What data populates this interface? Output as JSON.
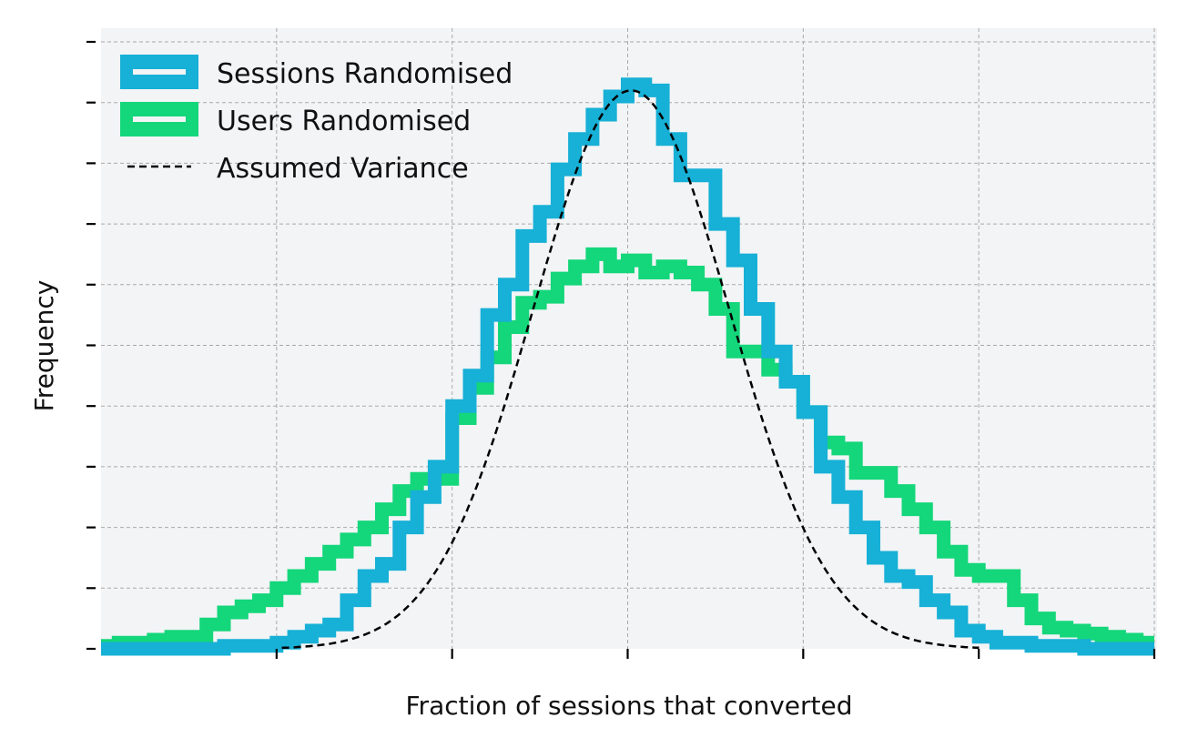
{
  "chart_data": {
    "type": "line",
    "title": "",
    "xlabel": "Fraction of sessions that converted",
    "ylabel": "Frequency",
    "xlim": [
      0,
      60
    ],
    "ylim": [
      0,
      10
    ],
    "grid": true,
    "legend_position": "top-left",
    "x_ticks": [
      10,
      20,
      30,
      40,
      50,
      60
    ],
    "y_ticks": [
      0,
      1,
      2,
      3,
      4,
      5,
      6,
      7,
      8,
      9,
      10
    ],
    "bin_edges": [
      0,
      1,
      2,
      3,
      4,
      5,
      6,
      7,
      8,
      9,
      10,
      11,
      12,
      13,
      14,
      15,
      16,
      17,
      18,
      19,
      20,
      21,
      22,
      23,
      24,
      25,
      26,
      27,
      28,
      29,
      30,
      31,
      32,
      33,
      34,
      35,
      36,
      37,
      38,
      39,
      40,
      41,
      42,
      43,
      44,
      45,
      46,
      47,
      48,
      49,
      50,
      51,
      52,
      53,
      54,
      55,
      56,
      57,
      58,
      59,
      60
    ],
    "series": [
      {
        "name": "Sessions Randomised",
        "color": "#17b0d6",
        "style": "step",
        "values": [
          0,
          0,
          0,
          0,
          0,
          0,
          0,
          0.05,
          0.05,
          0.05,
          0.1,
          0.2,
          0.3,
          0.4,
          0.8,
          1.2,
          1.4,
          2.0,
          2.5,
          3.0,
          4.0,
          4.5,
          5.5,
          6.0,
          6.8,
          7.2,
          7.9,
          8.4,
          8.8,
          9.1,
          9.3,
          9.2,
          8.4,
          7.8,
          7.8,
          7.0,
          6.4,
          5.6,
          4.9,
          4.4,
          3.9,
          3.0,
          2.5,
          2.0,
          1.5,
          1.2,
          1.1,
          0.8,
          0.6,
          0.3,
          0.2,
          0.1,
          0.1,
          0.05,
          0.05,
          0.05,
          0,
          0,
          0,
          0
        ]
      },
      {
        "name": "Users Randomised",
        "color": "#14d67a",
        "style": "step",
        "values": [
          0.05,
          0.1,
          0.1,
          0.15,
          0.2,
          0.2,
          0.4,
          0.6,
          0.7,
          0.8,
          1.0,
          1.2,
          1.4,
          1.6,
          1.8,
          2.0,
          2.3,
          2.6,
          2.8,
          2.8,
          3.8,
          4.3,
          4.8,
          5.3,
          5.7,
          5.8,
          6.1,
          6.3,
          6.5,
          6.3,
          6.4,
          6.2,
          6.3,
          6.2,
          6.0,
          5.6,
          4.9,
          4.9,
          4.6,
          4.4,
          3.9,
          3.4,
          3.3,
          2.9,
          2.9,
          2.6,
          2.3,
          2.0,
          1.6,
          1.3,
          1.2,
          1.2,
          0.8,
          0.5,
          0.35,
          0.3,
          0.25,
          0.2,
          0.15,
          0.1
        ]
      },
      {
        "name": "Assumed Variance",
        "color": "#000000",
        "style": "dashed",
        "mean": 30.2,
        "sd": 5.6,
        "peak": 9.2,
        "x_range": [
          10.3,
          50
        ]
      }
    ]
  }
}
